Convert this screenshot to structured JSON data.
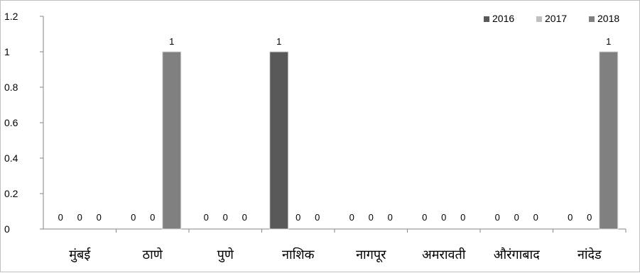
{
  "chart_data": {
    "type": "bar",
    "categories": [
      "मुंबई",
      "ठाणे",
      "पुणे",
      "नाशिक",
      "नागपूर",
      "अमरावती",
      "औरंगाबाद",
      "नांदेड"
    ],
    "series": [
      {
        "name": "2016",
        "color": "#595959",
        "values": [
          0,
          0,
          0,
          1,
          0,
          0,
          0,
          0
        ]
      },
      {
        "name": "2017",
        "color": "#bfbfbf",
        "values": [
          0,
          0,
          0,
          0,
          0,
          0,
          0,
          0
        ]
      },
      {
        "name": "2018",
        "color": "#808080",
        "values": [
          0,
          1,
          0,
          0,
          0,
          0,
          0,
          1
        ]
      }
    ],
    "data_labels": [
      [
        "0",
        "0",
        "0"
      ],
      [
        "0",
        "0",
        "1"
      ],
      [
        "0",
        "0",
        "0"
      ],
      [
        "1",
        "0",
        "0"
      ],
      [
        "0",
        "0",
        "0"
      ],
      [
        "0",
        "0",
        "0"
      ],
      [
        "0",
        "0",
        "0"
      ],
      [
        "0",
        "0",
        "1"
      ]
    ],
    "yticks": [
      "0",
      "0.2",
      "0.4",
      "0.6",
      "0.8",
      "1",
      "1.2"
    ],
    "ylim": [
      0,
      1.2
    ],
    "title": "",
    "xlabel": "",
    "ylabel": "",
    "grid": false,
    "legend": "top-right"
  }
}
